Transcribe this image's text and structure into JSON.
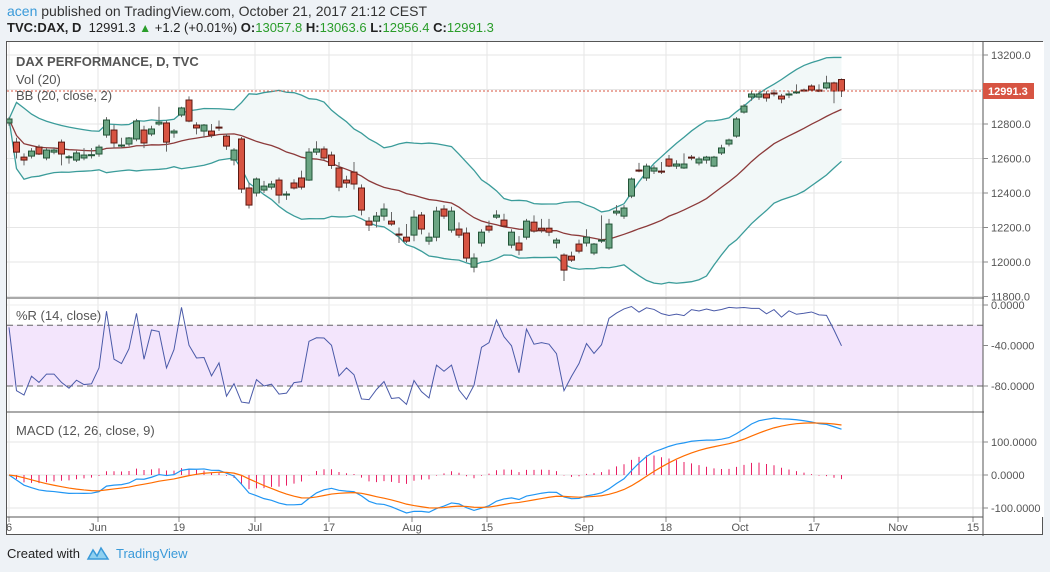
{
  "header": {
    "user": "acen",
    "published": "published on TradingView.com, October 21, 2017 21:12 CEST",
    "symbol": "TVC:DAX, D",
    "last": "12991.3",
    "change": "+1.2 (+0.01%)",
    "o_label": "O:",
    "o": "13057.8",
    "h_label": "H:",
    "h": "13063.6",
    "l_label": "L:",
    "l": "12956.4",
    "c_label": "C:",
    "c": "12991.3"
  },
  "footer": {
    "created_with": "Created with",
    "brand": "TradingView"
  },
  "colors": {
    "bull": "#6ba583",
    "bear": "#d75442",
    "bb_band": "#3b9c9a",
    "bb_basis": "#8c3a3a",
    "bb_fill": "#f2f8f8",
    "wr_line": "#4a5aa8",
    "wr_fill": "#f3e5fc",
    "macd": "#2196f3",
    "signal": "#ff6d00",
    "hist": "#e91e63",
    "price_label": "#d75442"
  },
  "chart_data": [
    {
      "type": "candlestick",
      "title": "DAX PERFORMANCE, D, TVC",
      "indicators": [
        "Vol (20)",
        "BB (20, close, 2)"
      ],
      "ylim": [
        11800,
        13260
      ],
      "yticks": [
        "13200.0",
        "12800.0",
        "12600.0",
        "12400.0",
        "12200.0",
        "12000.0",
        "11800.0"
      ],
      "ytick_values": [
        13200,
        12800,
        12600,
        12400,
        12200,
        12000,
        11800
      ],
      "last_price_label": "12991.3",
      "last_price": 12991.3,
      "xticks": [
        "6",
        "Jun",
        "19",
        "Jul",
        "17",
        "Aug",
        "15",
        "Sep",
        "18",
        "Oct",
        "17",
        "Nov",
        "15"
      ],
      "grid": true,
      "ohlc": [
        [
          12806,
          12840,
          12790,
          12829
        ],
        [
          12695,
          12720,
          12600,
          12637
        ],
        [
          12608,
          12630,
          12560,
          12591
        ],
        [
          12614,
          12660,
          12600,
          12643
        ],
        [
          12666,
          12680,
          12620,
          12626
        ],
        [
          12603,
          12660,
          12590,
          12649
        ],
        [
          12637,
          12665,
          12625,
          12649
        ],
        [
          12695,
          12710,
          12560,
          12626
        ],
        [
          12608,
          12620,
          12570,
          12610
        ],
        [
          12591,
          12645,
          12580,
          12632
        ],
        [
          12603,
          12660,
          12590,
          12620
        ],
        [
          12620,
          12660,
          12600,
          12622
        ],
        [
          12626,
          12680,
          12610,
          12666
        ],
        [
          12736,
          12840,
          12720,
          12823
        ],
        [
          12765,
          12795,
          12660,
          12690
        ],
        [
          12672,
          12720,
          12660,
          12678
        ],
        [
          12684,
          12725,
          12670,
          12719
        ],
        [
          12713,
          12830,
          12700,
          12817
        ],
        [
          12765,
          12790,
          12660,
          12690
        ],
        [
          12742,
          12790,
          12730,
          12771
        ],
        [
          12800,
          12900,
          12790,
          12811
        ],
        [
          12806,
          12820,
          12640,
          12695
        ],
        [
          12748,
          12770,
          12720,
          12759
        ],
        [
          12852,
          12900,
          12840,
          12893
        ],
        [
          12939,
          12960,
          12810,
          12817
        ],
        [
          12794,
          12810,
          12740,
          12777
        ],
        [
          12759,
          12800,
          12720,
          12794
        ],
        [
          12759,
          12800,
          12720,
          12736
        ],
        [
          12782,
          12820,
          12760,
          12777
        ],
        [
          12730,
          12745,
          12650,
          12672
        ],
        [
          12591,
          12660,
          12560,
          12649
        ],
        [
          12713,
          12725,
          12400,
          12423
        ],
        [
          12429,
          12460,
          12310,
          12330
        ],
        [
          12400,
          12490,
          12380,
          12481
        ],
        [
          12417,
          12470,
          12400,
          12440
        ],
        [
          12434,
          12470,
          12420,
          12452
        ],
        [
          12475,
          12490,
          12340,
          12388
        ],
        [
          12388,
          12410,
          12360,
          12394
        ],
        [
          12458,
          12480,
          12420,
          12429
        ],
        [
          12487,
          12530,
          12420,
          12434
        ],
        [
          12475,
          12660,
          12470,
          12637
        ],
        [
          12637,
          12700,
          12620,
          12655
        ],
        [
          12655,
          12670,
          12590,
          12603
        ],
        [
          12620,
          12640,
          12540,
          12560
        ],
        [
          12545,
          12580,
          12410,
          12434
        ],
        [
          12475,
          12500,
          12430,
          12458
        ],
        [
          12521,
          12580,
          12420,
          12452
        ],
        [
          12429,
          12450,
          12270,
          12301
        ],
        [
          12237,
          12260,
          12180,
          12214
        ],
        [
          12237,
          12290,
          12200,
          12266
        ],
        [
          12266,
          12340,
          12240,
          12307
        ],
        [
          12237,
          12290,
          12210,
          12220
        ],
        [
          12162,
          12200,
          12110,
          12160
        ],
        [
          12144,
          12220,
          12110,
          12121
        ],
        [
          12156,
          12300,
          12120,
          12260
        ],
        [
          12272,
          12290,
          12160,
          12191
        ],
        [
          12121,
          12170,
          12100,
          12144
        ],
        [
          12144,
          12320,
          12120,
          12295
        ],
        [
          12307,
          12330,
          12250,
          12266
        ],
        [
          12185,
          12320,
          12170,
          12295
        ],
        [
          12191,
          12230,
          12140,
          12156
        ],
        [
          12168,
          12200,
          12000,
          12023
        ],
        [
          11970,
          12050,
          11940,
          12023
        ],
        [
          12110,
          12190,
          12090,
          12173
        ],
        [
          12208,
          12240,
          12170,
          12185
        ],
        [
          12260,
          12300,
          12250,
          12272
        ],
        [
          12243,
          12280,
          12200,
          12208
        ],
        [
          12098,
          12190,
          12080,
          12173
        ],
        [
          12110,
          12150,
          12040,
          12069
        ],
        [
          12144,
          12250,
          12130,
          12237
        ],
        [
          12231,
          12270,
          12170,
          12179
        ],
        [
          12196,
          12250,
          12170,
          12185
        ],
        [
          12196,
          12250,
          12150,
          12173
        ],
        [
          12110,
          12140,
          12080,
          12127
        ],
        [
          12040,
          12050,
          11890,
          11953
        ],
        [
          12034,
          12060,
          12000,
          12011
        ],
        [
          12104,
          12130,
          12050,
          12063
        ],
        [
          12110,
          12190,
          12090,
          12144
        ],
        [
          12052,
          12110,
          12040,
          12104
        ],
        [
          12125,
          12270,
          12110,
          12127
        ],
        [
          12081,
          12250,
          12070,
          12220
        ],
        [
          12284,
          12330,
          12270,
          12295
        ],
        [
          12266,
          12330,
          12250,
          12313
        ],
        [
          12382,
          12490,
          12370,
          12481
        ],
        [
          12533,
          12575,
          12520,
          12527
        ],
        [
          12487,
          12570,
          12470,
          12556
        ],
        [
          12527,
          12560,
          12510,
          12545
        ],
        [
          12527,
          12580,
          12510,
          12521
        ],
        [
          12597,
          12620,
          12550,
          12556
        ],
        [
          12556,
          12590,
          12540,
          12568
        ],
        [
          12545,
          12630,
          12540,
          12568
        ],
        [
          12608,
          12620,
          12590,
          12603
        ],
        [
          12574,
          12610,
          12560,
          12597
        ],
        [
          12591,
          12615,
          12570,
          12608
        ],
        [
          12556,
          12615,
          12550,
          12608
        ],
        [
          12632,
          12680,
          12620,
          12661
        ],
        [
          12684,
          12715,
          12670,
          12707
        ],
        [
          12730,
          12840,
          12720,
          12829
        ],
        [
          12869,
          12915,
          12860,
          12904
        ],
        [
          12956,
          12990,
          12935,
          12974
        ],
        [
          12956,
          12990,
          12940,
          12974
        ],
        [
          12974,
          12990,
          12930,
          12951
        ],
        [
          12980,
          13000,
          12960,
          12979
        ],
        [
          12962,
          12975,
          12920,
          12945
        ],
        [
          12968,
          12990,
          12950,
          12974
        ],
        [
          12980,
          13030,
          12975,
          12986
        ],
        [
          12997,
          13005,
          12985,
          12991
        ],
        [
          13020,
          13030,
          12990,
          12997
        ],
        [
          12997,
          13030,
          12985,
          12990
        ],
        [
          13009,
          13080,
          13000,
          13038
        ],
        [
          13038,
          13045,
          12920,
          12991
        ],
        [
          13057.8,
          13063.6,
          12956.4,
          12991.3
        ]
      ]
    },
    {
      "type": "line",
      "title": "%R (14, close)",
      "ylim": [
        -100,
        0
      ],
      "yticks": [
        "0.0000",
        "-40.0000",
        "-80.0000"
      ],
      "ytick_values": [
        0,
        -40,
        -80
      ],
      "bands": [
        -20,
        -80
      ]
    },
    {
      "type": "line",
      "title": "MACD (12, 26, close, 9)",
      "yticks": [
        "100.0000",
        "0.0000",
        "-100.0000"
      ],
      "ytick_values": [
        100,
        0,
        -100
      ]
    }
  ]
}
